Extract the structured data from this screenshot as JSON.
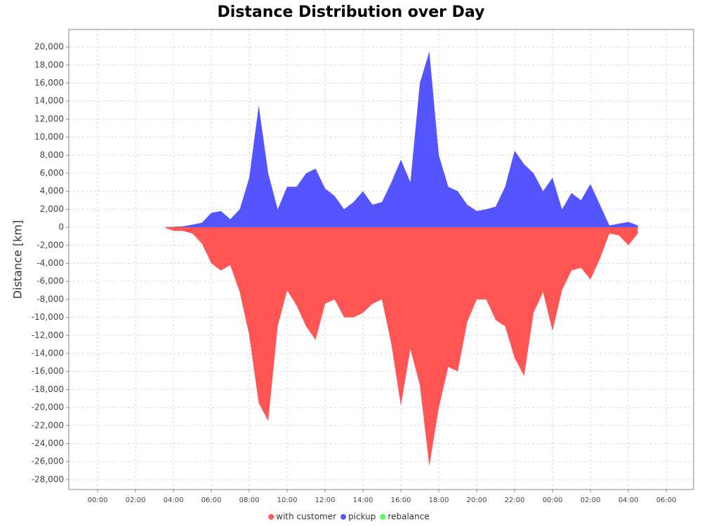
{
  "chart_data": {
    "type": "area",
    "title": "Distance Distribution over Day",
    "y_label": "Distance [km]",
    "x": [
      3.5,
      4,
      4.5,
      5,
      5.5,
      6,
      6.5,
      7,
      7.5,
      8,
      8.5,
      9,
      9.5,
      10,
      10.5,
      11,
      11.5,
      12,
      12.5,
      13,
      13.5,
      14,
      14.5,
      15,
      15.5,
      16,
      16.5,
      17,
      17.5,
      18,
      18.5,
      19,
      19.5,
      20,
      20.5,
      21,
      21.5,
      22,
      22.5,
      23,
      23.5,
      24,
      24.5,
      25,
      25.5,
      26,
      26.5,
      27,
      27.5,
      28,
      28.5
    ],
    "series": [
      {
        "name": "with customer",
        "color": "#ff5555",
        "values": [
          0,
          -400,
          -400,
          -700,
          -1800,
          -4000,
          -4800,
          -4200,
          -7200,
          -12000,
          -19500,
          -21500,
          -11000,
          -7000,
          -8700,
          -11000,
          -12500,
          -8500,
          -8000,
          -10000,
          -10000,
          -9500,
          -8500,
          -8000,
          -13000,
          -19800,
          -13500,
          -17500,
          -26500,
          -20000,
          -15500,
          -16000,
          -10500,
          -8000,
          -8000,
          -10300,
          -11000,
          -14500,
          -16500,
          -9500,
          -7200,
          -11500,
          -7000,
          -4800,
          -4500,
          -5800,
          -3500,
          -700,
          -900,
          -2000,
          -700
        ]
      },
      {
        "name": "pickup",
        "color": "#5555ff",
        "values": [
          0,
          50,
          100,
          300,
          500,
          1600,
          1800,
          900,
          2000,
          5500,
          13500,
          6000,
          2000,
          4500,
          4500,
          6000,
          6500,
          4300,
          3500,
          2000,
          2800,
          4000,
          2500,
          2800,
          5000,
          7500,
          5000,
          16000,
          19500,
          8000,
          4500,
          4000,
          2500,
          1800,
          2000,
          2300,
          4500,
          8500,
          7000,
          6000,
          4000,
          5500,
          2000,
          3800,
          3000,
          4800,
          2500,
          200,
          400,
          600,
          200
        ]
      },
      {
        "name": "rebalance",
        "color": "#55ff55",
        "values": [
          0,
          0,
          0,
          0,
          0,
          0,
          0,
          0,
          0,
          0,
          0,
          0,
          0,
          0,
          0,
          0,
          0,
          0,
          0,
          0,
          0,
          0,
          0,
          0,
          0,
          0,
          0,
          0,
          0,
          0,
          0,
          0,
          0,
          0,
          0,
          0,
          0,
          0,
          0,
          0,
          0,
          0,
          0,
          0,
          0,
          0,
          0,
          0,
          0,
          0,
          0
        ]
      }
    ],
    "xlim": [
      -1.52,
      31.44
    ],
    "ylim": [
      -29100,
      21950
    ],
    "xticks": [
      {
        "value": 0,
        "label": "00:00"
      },
      {
        "value": 2,
        "label": "02:00"
      },
      {
        "value": 4,
        "label": "04:00"
      },
      {
        "value": 6,
        "label": "06:00"
      },
      {
        "value": 8,
        "label": "08:00"
      },
      {
        "value": 10,
        "label": "10:00"
      },
      {
        "value": 12,
        "label": "12:00"
      },
      {
        "value": 14,
        "label": "14:00"
      },
      {
        "value": 16,
        "label": "16:00"
      },
      {
        "value": 18,
        "label": "18:00"
      },
      {
        "value": 20,
        "label": "20:00"
      },
      {
        "value": 22,
        "label": "22:00"
      },
      {
        "value": 24,
        "label": "00:00"
      },
      {
        "value": 26,
        "label": "02:00"
      },
      {
        "value": 28,
        "label": "04:00"
      },
      {
        "value": 30,
        "label": "06:00"
      }
    ],
    "yticks": [
      {
        "value": 20000,
        "label": "20,000"
      },
      {
        "value": 18000,
        "label": "18,000"
      },
      {
        "value": 16000,
        "label": "16,000"
      },
      {
        "value": 14000,
        "label": "14,000"
      },
      {
        "value": 12000,
        "label": "12,000"
      },
      {
        "value": 10000,
        "label": "10,000"
      },
      {
        "value": 8000,
        "label": "8,000"
      },
      {
        "value": 6000,
        "label": "6,000"
      },
      {
        "value": 4000,
        "label": "4,000"
      },
      {
        "value": 2000,
        "label": "2,000"
      },
      0,
      {
        "value": -2000,
        "label": "-2,000"
      },
      {
        "value": -4000,
        "label": "-4,000"
      },
      {
        "value": -6000,
        "label": "-6,000"
      },
      {
        "value": -8000,
        "label": "-8,000"
      },
      {
        "value": -10000,
        "label": "-10,000"
      },
      {
        "value": -12000,
        "label": "-12,000"
      },
      {
        "value": -14000,
        "label": "-14,000"
      },
      {
        "value": -16000,
        "label": "-16,000"
      },
      {
        "value": -18000,
        "label": "-18,000"
      },
      {
        "value": -20000,
        "label": "-20,000"
      },
      {
        "value": -22000,
        "label": "-22,000"
      },
      {
        "value": -24000,
        "label": "-24,000"
      },
      {
        "value": -26000,
        "label": "-26,000"
      },
      {
        "value": -28000,
        "label": "-28,000"
      }
    ],
    "grid": true,
    "legend": "bottom"
  }
}
